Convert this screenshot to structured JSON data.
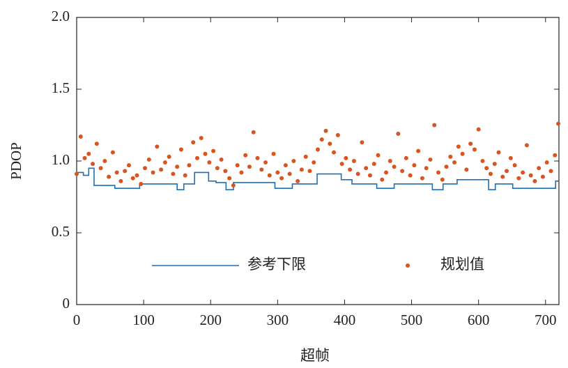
{
  "chart_data": {
    "type": "scatter",
    "xlabel": "超帧",
    "ylabel": "PDOP",
    "xlim": [
      0,
      720
    ],
    "ylim": [
      0,
      2
    ],
    "xticks": [
      0,
      100,
      200,
      300,
      400,
      500,
      600,
      700
    ],
    "yticks": [
      0,
      0.5,
      {
        "value": 1,
        "label": "1.0"
      },
      1.5,
      {
        "value": 2,
        "label": "2.0"
      }
    ],
    "legend": "lower center",
    "series": [
      {
        "name": "参考下限",
        "type": "line",
        "step": "post",
        "color": "#1f6fb5",
        "x": [
          0,
          10,
          18,
          26,
          57,
          94,
          150,
          160,
          176,
          197,
          208,
          223,
          234,
          296,
          322,
          359,
          395,
          411,
          448,
          474,
          531,
          547,
          568,
          615,
          625,
          651,
          715,
          720
        ],
        "values": [
          0.92,
          0.9,
          0.95,
          0.83,
          0.81,
          0.84,
          0.8,
          0.84,
          0.92,
          0.86,
          0.85,
          0.8,
          0.85,
          0.81,
          0.84,
          0.91,
          0.87,
          0.84,
          0.81,
          0.84,
          0.8,
          0.84,
          0.87,
          0.8,
          0.84,
          0.81,
          0.86,
          0.86
        ]
      },
      {
        "name": "规划值",
        "type": "scatter",
        "color": "#d9541e",
        "x": [
          0,
          6,
          12,
          18,
          24,
          30,
          36,
          42,
          48,
          54,
          60,
          66,
          72,
          78,
          84,
          90,
          96,
          102,
          108,
          114,
          120,
          126,
          132,
          138,
          144,
          150,
          156,
          162,
          168,
          174,
          180,
          186,
          192,
          198,
          204,
          210,
          216,
          222,
          228,
          234,
          240,
          246,
          252,
          258,
          264,
          270,
          276,
          282,
          288,
          294,
          300,
          306,
          312,
          318,
          324,
          330,
          336,
          342,
          348,
          354,
          360,
          366,
          372,
          378,
          384,
          390,
          396,
          402,
          408,
          414,
          420,
          426,
          432,
          438,
          444,
          450,
          456,
          462,
          468,
          474,
          480,
          486,
          492,
          498,
          504,
          510,
          516,
          522,
          528,
          534,
          540,
          546,
          552,
          558,
          564,
          570,
          576,
          582,
          588,
          594,
          600,
          606,
          612,
          618,
          624,
          630,
          636,
          642,
          648,
          654,
          660,
          666,
          672,
          678,
          684,
          690,
          696,
          702,
          708,
          714,
          719
        ],
        "values": [
          0.91,
          1.17,
          1.02,
          1.05,
          0.98,
          1.12,
          0.95,
          1.0,
          0.89,
          1.06,
          0.92,
          0.86,
          0.93,
          0.97,
          0.88,
          0.9,
          0.84,
          0.95,
          1.01,
          0.92,
          1.1,
          0.94,
          0.99,
          1.03,
          0.91,
          0.96,
          1.08,
          0.9,
          0.97,
          1.13,
          1.02,
          1.16,
          1.05,
          0.99,
          1.07,
          0.95,
          1.01,
          0.93,
          0.88,
          0.83,
          0.97,
          0.92,
          1.04,
          0.96,
          1.2,
          1.02,
          0.94,
          0.99,
          0.9,
          1.05,
          0.92,
          0.88,
          0.97,
          0.91,
          1.0,
          0.86,
          0.94,
          1.03,
          0.93,
          0.99,
          1.08,
          1.15,
          1.21,
          1.12,
          1.06,
          1.18,
          0.98,
          1.02,
          0.94,
          1.0,
          0.91,
          1.13,
          0.95,
          0.9,
          0.98,
          1.04,
          0.87,
          0.92,
          1.0,
          0.96,
          1.19,
          0.93,
          1.02,
          0.9,
          0.97,
          1.07,
          0.88,
          0.95,
          1.01,
          1.25,
          0.92,
          0.87,
          0.96,
          1.03,
          0.99,
          1.1,
          1.05,
          0.94,
          1.12,
          1.08,
          1.22,
          1.0,
          0.95,
          0.91,
          0.98,
          1.06,
          0.89,
          0.93,
          1.02,
          0.97,
          0.88,
          0.92,
          1.11,
          0.9,
          0.86,
          0.95,
          0.89,
          0.99,
          0.93,
          1.04,
          1.26
        ]
      }
    ]
  }
}
